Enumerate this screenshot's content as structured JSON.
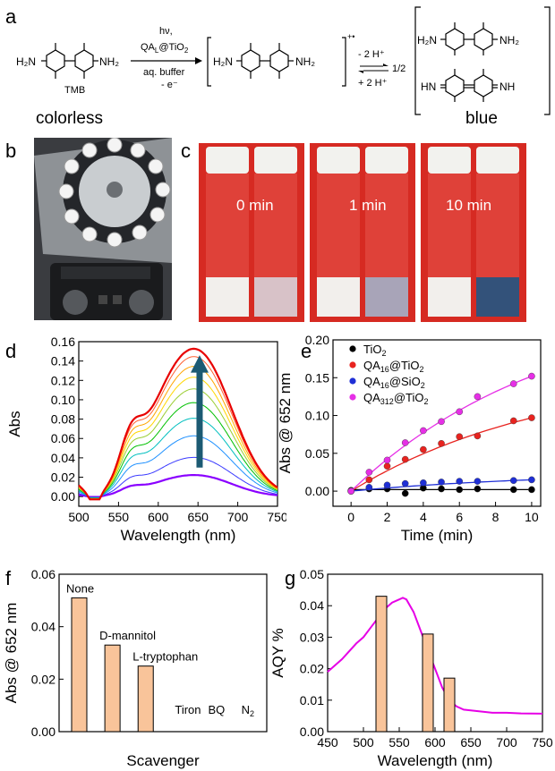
{
  "panels": {
    "a": "a",
    "b": "b",
    "c": "c",
    "d": "d",
    "e": "e",
    "f": "f",
    "g": "g"
  },
  "scheme": {
    "left_label": "colorless",
    "right_label": "blue",
    "tmb_label": "TMB",
    "arrow_top1": "hν,",
    "arrow_top2": "QA",
    "arrow_top2_sub": "L",
    "arrow_top2_rest": "@TiO",
    "arrow_top2_sub2": "2",
    "arrow_bottom1": "aq. buffer",
    "arrow_bottom2": "- e⁻",
    "radical_charge": "+•",
    "eq_top": "- 2 H⁺",
    "eq_bottom": "+ 2 H⁺",
    "half": "1/2",
    "h2n": "H₂N",
    "nh2": "NH₂",
    "hn": "HN",
    "nh": "NH"
  },
  "vials": {
    "labels": [
      "0 min",
      "1 min",
      "10 min"
    ]
  },
  "colors": {
    "chart_e_tio2": "#000000",
    "chart_e_qa16tio2": "#e8231f",
    "chart_e_qa16sio2": "#1f2fd6",
    "chart_e_qa312tio2": "#e62fe6",
    "bar_fill": "#f9c49a",
    "chart_g_line": "#e600e6",
    "arrow": "#1c5a73"
  },
  "chart_data": [
    {
      "id": "d",
      "type": "line",
      "xlabel": "Wavelength (nm)",
      "ylabel": "Abs",
      "xlim": [
        500,
        750
      ],
      "ylim": [
        -0.01,
        0.16
      ],
      "xticks": [
        500,
        550,
        600,
        650,
        700,
        750
      ],
      "yticks": [
        0.0,
        0.02,
        0.04,
        0.06,
        0.08,
        0.1,
        0.12,
        0.14,
        0.16
      ],
      "ytick_labels": [
        "0.00",
        "0.02",
        "0.04",
        "0.06",
        "0.08",
        "0.10",
        "0.12",
        "0.14",
        "0.16"
      ],
      "series_peak_values": [
        0.022,
        0.04,
        0.062,
        0.08,
        0.096,
        0.11,
        0.122,
        0.133,
        0.143,
        0.151
      ],
      "series_colors": [
        "#8a00ff",
        "#3a3aff",
        "#1e90ff",
        "#00bfbf",
        "#00c000",
        "#9acd32",
        "#ffd700",
        "#ffa500",
        "#ff6030",
        "#e80000"
      ]
    },
    {
      "id": "e",
      "type": "scatter",
      "xlabel": "Time (min)",
      "ylabel": "Abs @ 652 nm",
      "xlim": [
        -1,
        10.5
      ],
      "ylim": [
        -0.02,
        0.2
      ],
      "xticks": [
        0,
        2,
        4,
        6,
        8,
        10
      ],
      "yticks": [
        0.0,
        0.05,
        0.1,
        0.15,
        0.2
      ],
      "ytick_labels": [
        "0.00",
        "0.05",
        "0.10",
        "0.15",
        "0.20"
      ],
      "legend": "top-left",
      "series": [
        {
          "name": "TiO",
          "sub": "2",
          "prefix": "",
          "x": [
            0,
            1,
            2,
            3,
            4,
            5,
            6,
            7,
            9,
            10
          ],
          "y": [
            0.001,
            0.003,
            0.003,
            -0.003,
            0.004,
            0.003,
            0.002,
            0.003,
            0.002,
            0.002
          ]
        },
        {
          "name": "QA",
          "sub": "16",
          "prefix": "@TiO",
          "sub2": "2",
          "x": [
            0,
            1,
            2,
            3,
            4,
            5,
            6,
            7,
            9,
            10
          ],
          "y": [
            0.0,
            0.015,
            0.033,
            0.042,
            0.055,
            0.063,
            0.072,
            0.073,
            0.093,
            0.097
          ]
        },
        {
          "name": "QA",
          "sub": "16",
          "prefix": "@SiO",
          "sub2": "2",
          "x": [
            0,
            1,
            2,
            3,
            4,
            5,
            6,
            7,
            9,
            10
          ],
          "y": [
            0.0,
            0.005,
            0.008,
            0.01,
            0.011,
            0.012,
            0.013,
            0.013,
            0.014,
            0.015
          ]
        },
        {
          "name": "QA",
          "sub": "312",
          "prefix": "@TiO",
          "sub2": "2",
          "x": [
            0,
            1,
            2,
            3,
            4,
            5,
            6,
            7,
            9,
            10
          ],
          "y": [
            0.0,
            0.025,
            0.041,
            0.064,
            0.08,
            0.092,
            0.105,
            0.125,
            0.142,
            0.152
          ]
        }
      ]
    },
    {
      "id": "f",
      "type": "bar",
      "xlabel": "Scavenger",
      "ylabel": "Abs @ 652 nm",
      "ylim": [
        0,
        0.06
      ],
      "yticks": [
        0.0,
        0.02,
        0.04,
        0.06
      ],
      "ytick_labels": [
        "0.00",
        "0.02",
        "0.04",
        "0.06"
      ],
      "categories": [
        "None",
        "D-mannitol",
        "L-tryptophan",
        "Tiron",
        "BQ",
        "N"
      ],
      "category_subs": [
        "",
        "",
        "",
        "",
        "",
        "2"
      ],
      "values": [
        0.051,
        0.033,
        0.025,
        0,
        0,
        0
      ]
    },
    {
      "id": "g",
      "type": "bar",
      "xlabel": "Wavelength (nm)",
      "ylabel": "AQY %",
      "xlim": [
        450,
        750
      ],
      "ylim": [
        0,
        0.05
      ],
      "xticks": [
        450,
        500,
        550,
        600,
        650,
        700,
        750
      ],
      "yticks": [
        0.0,
        0.01,
        0.02,
        0.03,
        0.04,
        0.05
      ],
      "ytick_labels": [
        "0.00",
        "0.01",
        "0.02",
        "0.03",
        "0.04",
        "0.05"
      ],
      "bars_x": [
        525,
        590,
        620
      ],
      "bars_y": [
        0.043,
        0.031,
        0.017
      ],
      "line_x": [
        450,
        470,
        490,
        500,
        510,
        520,
        530,
        540,
        550,
        555,
        560,
        570,
        580,
        590,
        600,
        610,
        620,
        630,
        640,
        660,
        680,
        700,
        720,
        750
      ],
      "line_y": [
        0.019,
        0.023,
        0.028,
        0.03,
        0.033,
        0.036,
        0.039,
        0.041,
        0.042,
        0.0425,
        0.042,
        0.038,
        0.032,
        0.026,
        0.02,
        0.014,
        0.01,
        0.008,
        0.007,
        0.0065,
        0.006,
        0.006,
        0.0058,
        0.0057
      ]
    }
  ]
}
